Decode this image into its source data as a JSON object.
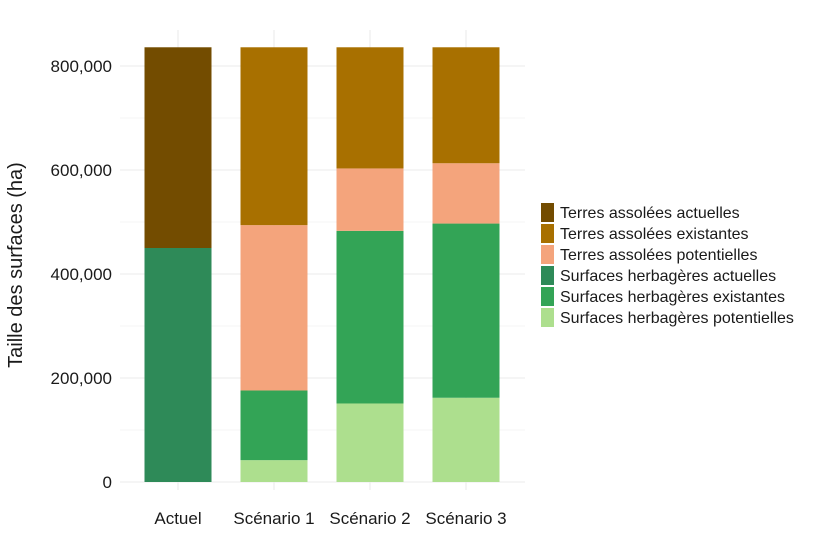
{
  "chart_data": {
    "type": "bar",
    "stacked": true,
    "title": "",
    "xlabel": "",
    "ylabel": "Taille des surfaces (ha)",
    "ylim": [
      0,
      836000
    ],
    "yticks": [
      0,
      200000,
      400000,
      600000,
      800000
    ],
    "ytick_labels": [
      "0",
      "200,000",
      "400,000",
      "600,000",
      "800,000"
    ],
    "grid": true,
    "legend_position": "right",
    "categories": [
      "Actuel",
      "Scénario 1",
      "Scénario 2",
      "Scénario 3"
    ],
    "series": [
      {
        "name": "Surfaces herbagères potentielles",
        "color": "#addf8e",
        "values": [
          0,
          42000,
          151000,
          162000
        ]
      },
      {
        "name": "Surfaces herbagères existantes",
        "color": "#33a456",
        "values": [
          0,
          134000,
          332000,
          335000
        ]
      },
      {
        "name": "Surfaces herbagères actuelles",
        "color": "#2e8a58",
        "values": [
          450000,
          0,
          0,
          0
        ]
      },
      {
        "name": "Terres assolées potentielles",
        "color": "#f4a47c",
        "values": [
          0,
          318000,
          120000,
          116000
        ]
      },
      {
        "name": "Terres assolées existantes",
        "color": "#a87000",
        "values": [
          0,
          342000,
          233000,
          223000
        ]
      },
      {
        "name": "Terres assolées actuelles",
        "color": "#734c00",
        "values": [
          386000,
          0,
          0,
          0
        ]
      }
    ],
    "legend_order": [
      "Terres assolées actuelles",
      "Terres assolées existantes",
      "Terres assolées potentielles",
      "Surfaces herbagères actuelles",
      "Surfaces herbagères existantes",
      "Surfaces herbagères potentielles"
    ]
  }
}
